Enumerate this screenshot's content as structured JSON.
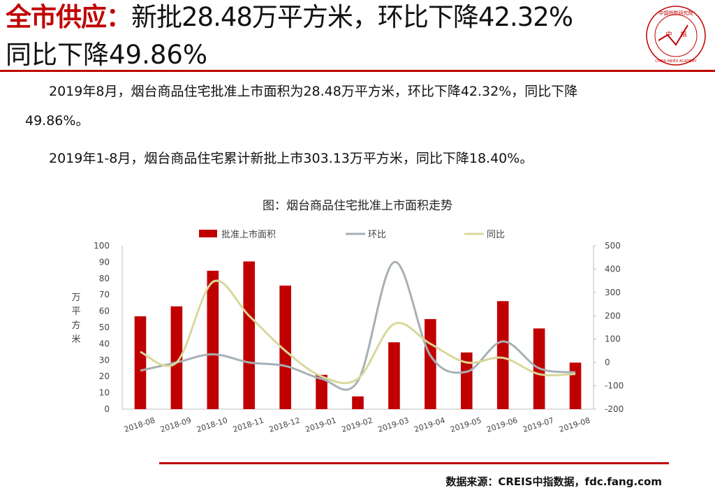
{
  "header": {
    "lead": "全市供应：",
    "rest": "新批28.48万平方米，环比下降42.32%",
    "line2": "同比下降49.86%"
  },
  "logo": {
    "top_text": "中国指数研究院",
    "center_left": "中",
    "center_right": "指",
    "bottom_text": "CHINA INDEX ACADEMY"
  },
  "body": {
    "p1_line1": "2019年8月，烟台商品住宅批准上市面积为28.48万平方米，环比下降42.32%，同比下降",
    "p1_line2": "49.86%。",
    "p2": "2019年1-8月，烟台商品住宅累计新批上市303.13万平方米，同比下降18.40%。"
  },
  "chart_title": "图：烟台商品住宅批准上市面积走势",
  "source": "数据来源：CREIS中指数据，fdc.fang.com",
  "colors": {
    "bar": "#c00000",
    "mom": "#a6b0b5",
    "yoy": "#d8d89a",
    "accent": "#c00000"
  },
  "chart_data": {
    "type": "bar",
    "categories": [
      "2018-08",
      "2018-09",
      "2018-10",
      "2018-11",
      "2018-12",
      "2019-01",
      "2019-02",
      "2019-03",
      "2019-04",
      "2019-05",
      "2019-06",
      "2019-07",
      "2019-08"
    ],
    "series": [
      {
        "name": "批准上市面积",
        "type": "bar",
        "axis": "left",
        "values": [
          56.8,
          62.9,
          84.7,
          90.4,
          75.6,
          21.0,
          7.8,
          40.9,
          55.1,
          34.7,
          66.1,
          49.4,
          28.48
        ]
      },
      {
        "name": "环比",
        "type": "line",
        "axis": "right",
        "values": [
          -35,
          0,
          35,
          0,
          -15,
          -70,
          -80,
          430,
          30,
          -40,
          90,
          -25,
          -42.32
        ]
      },
      {
        "name": "同比",
        "type": "line",
        "axis": "right",
        "values": [
          45,
          0,
          345,
          200,
          50,
          -60,
          -70,
          165,
          80,
          0,
          20,
          -50,
          -49.86
        ]
      }
    ],
    "ylabel": "万平方米",
    "y2label": "%",
    "ylim": [
      0,
      100
    ],
    "y2lim": [
      -200,
      500
    ],
    "yticks": [
      "0",
      "10",
      "20",
      "30",
      "40",
      "50",
      "60",
      "70",
      "80",
      "90",
      "100"
    ],
    "y2ticks": [
      "-200",
      "-100",
      "0",
      "100",
      "200",
      "300",
      "400",
      "500"
    ],
    "legend": "top-center",
    "grid": false
  }
}
